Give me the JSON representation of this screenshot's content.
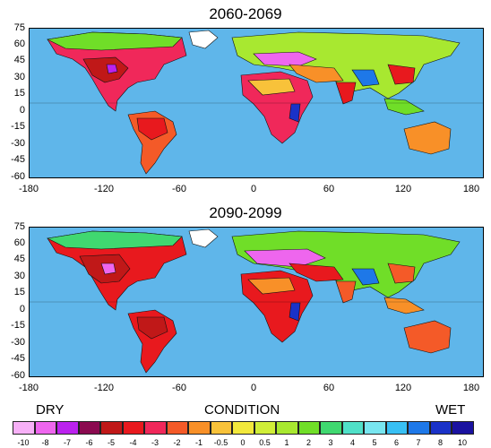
{
  "panels": [
    {
      "title": "2060-2069"
    },
    {
      "title": "2090-2099"
    }
  ],
  "axes": {
    "y_ticks": [
      "75",
      "60",
      "45",
      "30",
      "15",
      "0",
      "-15",
      "-30",
      "-45",
      "-60"
    ],
    "x_ticks": [
      "-180",
      "-120",
      "-60",
      "0",
      "60",
      "120",
      "180"
    ]
  },
  "legend": {
    "left_word": "DRY",
    "center_word": "CONDITION",
    "right_word": "WET",
    "classes": [
      {
        "label": "-10",
        "color": "#f7b0f7"
      },
      {
        "label": "-8",
        "color": "#ee66ee"
      },
      {
        "label": "-7",
        "color": "#bb22ee"
      },
      {
        "label": "-6",
        "color": "#8b0a50"
      },
      {
        "label": "-5",
        "color": "#c01818"
      },
      {
        "label": "-4",
        "color": "#e8191e"
      },
      {
        "label": "-3",
        "color": "#f0285a"
      },
      {
        "label": "-2",
        "color": "#f45a28"
      },
      {
        "label": "-1",
        "color": "#f89028"
      },
      {
        "label": "-0.5",
        "color": "#f8c23a"
      },
      {
        "label": "0",
        "color": "#f2e83c"
      },
      {
        "label": "0.5",
        "color": "#d0ee38"
      },
      {
        "label": "1",
        "color": "#a8e830"
      },
      {
        "label": "2",
        "color": "#70de28"
      },
      {
        "label": "3",
        "color": "#40d870"
      },
      {
        "label": "4",
        "color": "#50e0c8"
      },
      {
        "label": "5",
        "color": "#78e6f0"
      },
      {
        "label": "6",
        "color": "#38c0f4"
      },
      {
        "label": "7",
        "color": "#1e78e8"
      },
      {
        "label": "8",
        "color": "#1a32c8"
      },
      {
        "label": "10",
        "color": "#1a12a0"
      }
    ]
  },
  "colors": {
    "ocean": "#5fb6ea",
    "coastline": "#111111"
  }
}
